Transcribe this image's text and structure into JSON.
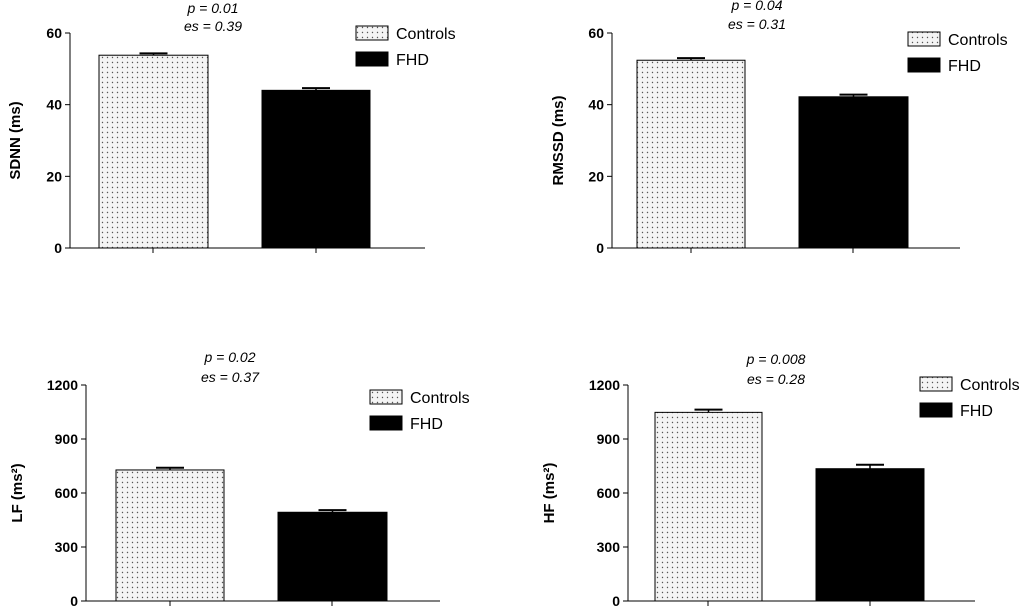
{
  "colors": {
    "controls_fill": "#f4f4f4",
    "controls_dot": "#555555",
    "fhd_fill": "#000000",
    "axis": "#000000"
  },
  "chart_data": [
    {
      "type": "bar",
      "categories": [
        "Controls",
        "FHD"
      ],
      "values": [
        53.8,
        44.0
      ],
      "errors": [
        0.5,
        0.6
      ],
      "ylabel": "SDNN (ms)",
      "ylim": [
        0,
        60
      ],
      "yticks": [
        0,
        20,
        40,
        60
      ],
      "annotation": [
        "p = 0.01",
        "es = 0.39"
      ],
      "legend": [
        "Controls",
        "FHD"
      ],
      "legend_position": "top-right",
      "grid": false
    },
    {
      "type": "bar",
      "categories": [
        "Controls",
        "FHD"
      ],
      "values": [
        52.4,
        42.2
      ],
      "errors": [
        0.6,
        0.6
      ],
      "ylabel": "RMSSD (ms)",
      "ylim": [
        0,
        60
      ],
      "yticks": [
        0,
        20,
        40,
        60
      ],
      "annotation": [
        "p = 0.04",
        "es = 0.31"
      ],
      "legend": [
        "Controls",
        "FHD"
      ],
      "legend_position": "top-right",
      "grid": false
    },
    {
      "type": "bar",
      "categories": [
        "Controls",
        "FHD"
      ],
      "values": [
        728,
        493
      ],
      "errors": [
        12,
        12
      ],
      "ylabel": "LF (ms²)",
      "ylim": [
        0,
        1200
      ],
      "yticks": [
        0,
        300,
        600,
        900,
        1200
      ],
      "annotation": [
        "p = 0.02",
        "es = 0.37"
      ],
      "legend": [
        "Controls",
        "FHD"
      ],
      "legend_position": "top-right",
      "grid": false
    },
    {
      "type": "bar",
      "categories": [
        "Controls",
        "FHD"
      ],
      "values": [
        1048,
        735
      ],
      "errors": [
        15,
        22
      ],
      "ylabel": "HF (ms²)",
      "ylim": [
        0,
        1200
      ],
      "yticks": [
        0,
        300,
        600,
        900,
        1200
      ],
      "annotation": [
        "p = 0.008",
        "es = 0.28"
      ],
      "legend": [
        "Controls",
        "FHD"
      ],
      "legend_position": "top-right",
      "grid": false
    }
  ]
}
